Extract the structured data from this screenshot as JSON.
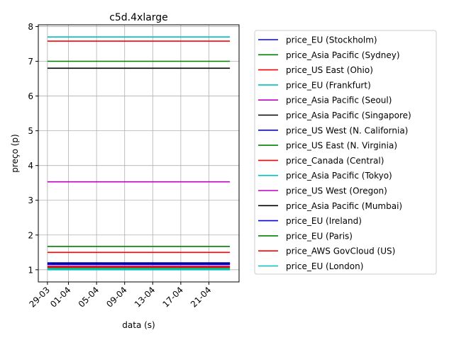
{
  "chart_data": {
    "type": "line",
    "title": "c5d.4xlarge",
    "xlabel": "data (s)",
    "ylabel": "preço (p)",
    "x_tick_labels": [
      "29-03",
      "01-04",
      "05-04",
      "09-04",
      "13-04",
      "17-04",
      "21-04"
    ],
    "x_start": "2019-03-29",
    "x_end": "2019-04-24",
    "x_ticks": [
      "2019-03-29",
      "2019-04-01",
      "2019-04-05",
      "2019-04-09",
      "2019-04-13",
      "2019-04-17",
      "2019-04-21"
    ],
    "ylim": [
      0.65,
      8.05
    ],
    "y_ticks": [
      1,
      2,
      3,
      4,
      5,
      6,
      7,
      8
    ],
    "grid": true,
    "legend_position": "outside-right",
    "series": [
      {
        "name": "price_EU (Stockholm)",
        "color": "#0000ff",
        "value": 1.17
      },
      {
        "name": "price_Asia Pacific (Sydney)",
        "color": "#008000",
        "value": 1.67
      },
      {
        "name": "price_US East (Ohio)",
        "color": "#ff0000",
        "value": 1.5
      },
      {
        "name": "price_EU (Frankfurt)",
        "color": "#00bfbf",
        "value": 1.02
      },
      {
        "name": "price_Asia Pacific (Seoul)",
        "color": "#bf00bf",
        "value": 3.53
      },
      {
        "name": "price_Asia Pacific (Singapore)",
        "color": "#000000",
        "value": 6.8
      },
      {
        "name": "price_US West (N. California)",
        "color": "#0000ff",
        "value": 1.2
      },
      {
        "name": "price_US East (N. Virginia)",
        "color": "#008000",
        "value": 7.0
      },
      {
        "name": "price_Canada (Central)",
        "color": "#ff0000",
        "value": 7.58
      },
      {
        "name": "price_Asia Pacific (Tokyo)",
        "color": "#00bfbf",
        "value": 7.7
      },
      {
        "name": "price_US West (Oregon)",
        "color": "#bf00bf",
        "value": 1.1
      },
      {
        "name": "price_Asia Pacific (Mumbai)",
        "color": "#000000",
        "value": 1.18
      },
      {
        "name": "price_EU (Ireland)",
        "color": "#0000ff",
        "value": 1.15
      },
      {
        "name": "price_EU (Paris)",
        "color": "#008000",
        "value": 1.06
      },
      {
        "name": "price_AWS GovCloud (US)",
        "color": "#ff0000",
        "value": 1.08
      },
      {
        "name": "price_EU (London)",
        "color": "#00bfbf",
        "value": 1.0
      }
    ]
  }
}
